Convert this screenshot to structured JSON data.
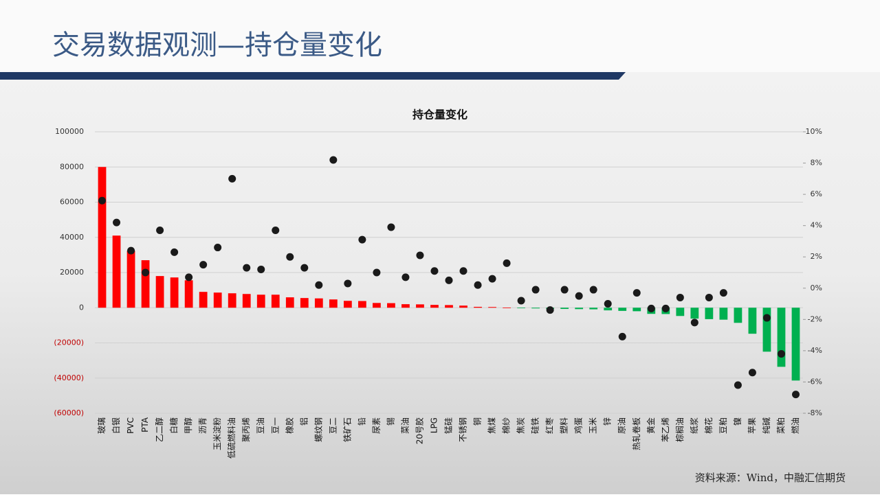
{
  "header": {
    "title": "交易数据观测—持仓量变化"
  },
  "footer": {
    "source": "资料来源：Wind，中融汇信期货"
  },
  "chart_data": {
    "type": "bar",
    "title": "持仓量变化",
    "categories": [
      "玻璃",
      "白银",
      "PVC",
      "PTA",
      "乙二醇",
      "白糖",
      "甲醇",
      "沥青",
      "玉米淀粉",
      "低硫燃料油",
      "聚丙烯",
      "豆油",
      "豆一",
      "橡胶",
      "铝",
      "螺纹钢",
      "豆二",
      "铁矿石",
      "铅",
      "尿素",
      "锡",
      "菜油",
      "20号胶",
      "LPG",
      "锰硅",
      "不锈钢",
      "铜",
      "焦煤",
      "棉纱",
      "焦炭",
      "硅铁",
      "红枣",
      "塑料",
      "鸡蛋",
      "玉米",
      "锌",
      "原油",
      "热轧卷板",
      "黄金",
      "苯乙烯",
      "棕榈油",
      "纸浆",
      "棉花",
      "豆粕",
      "镍",
      "苹果",
      "纯碱",
      "菜粕",
      "燃油"
    ],
    "series": [
      {
        "values": [
          80000,
          41000,
          32400,
          27000,
          18000,
          17200,
          15600,
          9000,
          8600,
          8200,
          7800,
          7400,
          7400,
          5900,
          5500,
          5300,
          4700,
          3900,
          3800,
          2700,
          2600,
          2000,
          1900,
          1600,
          1500,
          1200,
          500,
          400,
          100,
          -200,
          -400,
          -600,
          -700,
          -800,
          -900,
          -1500,
          -1800,
          -2000,
          -3500,
          -3600,
          -4700,
          -6200,
          -6500,
          -6800,
          -8600,
          -14800,
          -25000,
          -33600,
          -41400
        ],
        "positive_color": "#ff0000",
        "negative_color": "#00b050"
      },
      {
        "axis": "y2",
        "marker": "dot",
        "color": "#1a1a1a",
        "values": [
          5.6,
          4.2,
          2.4,
          1.0,
          3.7,
          2.3,
          0.7,
          1.5,
          2.6,
          7.0,
          1.3,
          1.2,
          3.7,
          2.0,
          1.3,
          0.2,
          8.2,
          0.3,
          3.1,
          1.0,
          3.9,
          0.7,
          2.1,
          1.1,
          0.5,
          1.1,
          0.2,
          0.6,
          1.6,
          -0.8,
          -0.1,
          -1.4,
          -0.1,
          -0.5,
          -0.1,
          -1.0,
          -3.1,
          -0.3,
          -1.3,
          -1.3,
          -0.6,
          -2.2,
          -0.6,
          -0.3,
          -6.2,
          -5.4,
          -1.9,
          -4.2,
          -6.8
        ]
      }
    ],
    "ylim": [
      -60000,
      100000
    ],
    "yticks": [
      {
        "value": -60000,
        "label": "(60000)"
      },
      {
        "value": -40000,
        "label": "(40000)"
      },
      {
        "value": -20000,
        "label": "(20000)"
      },
      0,
      20000,
      40000,
      60000,
      80000,
      100000
    ],
    "negative_tick_color": "#c00000",
    "y2lim": [
      -8,
      10
    ],
    "y2ticks": [
      {
        "value": -8,
        "label": "-8%"
      },
      {
        "value": -6,
        "label": "-6%"
      },
      {
        "value": -4,
        "label": "-4%"
      },
      {
        "value": -2,
        "label": "-2%"
      },
      {
        "value": 0,
        "label": "0%"
      },
      {
        "value": 2,
        "label": "2%"
      },
      {
        "value": 4,
        "label": "4%"
      },
      {
        "value": 6,
        "label": "6%"
      },
      {
        "value": 8,
        "label": "8%"
      },
      {
        "value": 10,
        "label": "10%"
      }
    ],
    "grid": true
  }
}
